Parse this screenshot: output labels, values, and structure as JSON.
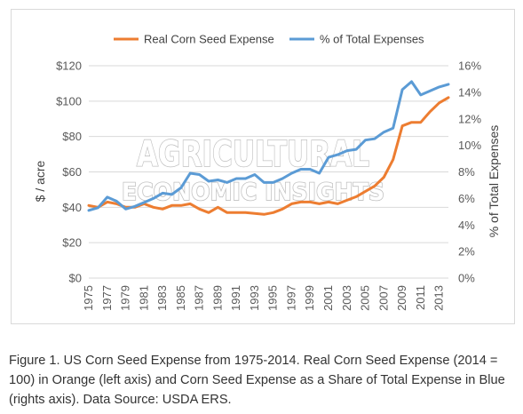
{
  "chart_data": {
    "type": "line",
    "title": "",
    "xlabel": "",
    "ylabel": "$ / acre",
    "y2label": "% of Total Expenses",
    "x": [
      1975,
      1976,
      1977,
      1978,
      1979,
      1980,
      1981,
      1982,
      1983,
      1984,
      1985,
      1986,
      1987,
      1988,
      1989,
      1990,
      1991,
      1992,
      1993,
      1994,
      1995,
      1996,
      1997,
      1998,
      1999,
      2000,
      2001,
      2002,
      2003,
      2004,
      2005,
      2006,
      2007,
      2008,
      2009,
      2010,
      2011,
      2012,
      2013,
      2014
    ],
    "x_tick_labels": [
      "1975",
      "1977",
      "1979",
      "1981",
      "1983",
      "1985",
      "1987",
      "1989",
      "1991",
      "1993",
      "1995",
      "1997",
      "1999",
      "2001",
      "2003",
      "2005",
      "2007",
      "2009",
      "2011",
      "2013"
    ],
    "ylim": [
      0,
      120
    ],
    "y_ticks": [
      0,
      20,
      40,
      60,
      80,
      100,
      120
    ],
    "y_tick_labels": [
      "$0",
      "$20",
      "$40",
      "$60",
      "$80",
      "$100",
      "$120"
    ],
    "y2lim": [
      0,
      16
    ],
    "y2_ticks": [
      0,
      2,
      4,
      6,
      8,
      10,
      12,
      14,
      16
    ],
    "y2_tick_labels": [
      "0%",
      "2%",
      "4%",
      "6%",
      "8%",
      "10%",
      "12%",
      "14%",
      "16%"
    ],
    "grid": true,
    "legend_position": "top",
    "series": [
      {
        "name": "Real Corn Seed Expense",
        "axis": "left",
        "color": "#ed7d31",
        "values": [
          41,
          40,
          43,
          42,
          40,
          40,
          42,
          40,
          39,
          41,
          41,
          42,
          39,
          37,
          40,
          37,
          37,
          37,
          36.5,
          36,
          37,
          39,
          42,
          43,
          43,
          42,
          43,
          42,
          44,
          46,
          49,
          52,
          57,
          67,
          86,
          88,
          88,
          94,
          99,
          102
        ]
      },
      {
        "name": "% of Total Expenses",
        "axis": "right",
        "color": "#5b9bd5",
        "values": [
          5.1,
          5.3,
          6.1,
          5.8,
          5.2,
          5.4,
          5.7,
          6.0,
          6.4,
          6.3,
          6.8,
          7.9,
          7.8,
          7.3,
          7.4,
          7.2,
          7.5,
          7.5,
          7.8,
          7.2,
          7.2,
          7.5,
          7.9,
          8.2,
          8.2,
          7.9,
          9.1,
          9.3,
          9.6,
          9.7,
          10.4,
          10.5,
          11.0,
          11.3,
          14.2,
          14.8,
          13.8,
          14.1,
          14.4,
          14.6
        ]
      }
    ]
  },
  "watermark": {
    "line1": "AGRICULTURAL",
    "line2": "ECONOMIC INSIGHTS"
  },
  "caption": "Figure 1. US Corn Seed Expense from 1975-2014. Real Corn Seed Expense (2014 = 100) in Orange (left axis) and Corn Seed Expense as a Share of Total Expense in Blue (rights axis). Data Source: USDA ERS.",
  "colors": {
    "gridline": "#d9d9d9",
    "orange": "#ed7d31",
    "blue": "#5b9bd5"
  }
}
